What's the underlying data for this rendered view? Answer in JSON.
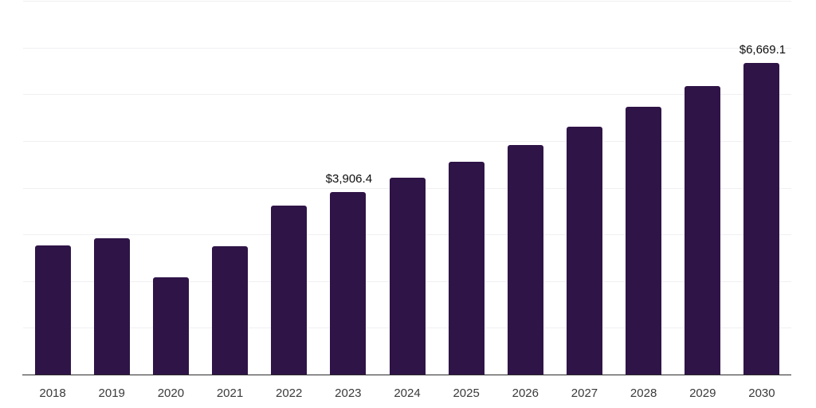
{
  "chart_data": {
    "type": "bar",
    "title": "",
    "xlabel": "",
    "ylabel": "",
    "categories": [
      "2018",
      "2019",
      "2020",
      "2021",
      "2022",
      "2023",
      "2024",
      "2025",
      "2026",
      "2027",
      "2028",
      "2029",
      "2030"
    ],
    "values": [
      2755,
      2915,
      2075,
      2750,
      3620,
      3906.4,
      4216.6,
      4551.5,
      4912.9,
      5303.0,
      5724.1,
      6178.7,
      6669.1
    ],
    "data_labels": [
      null,
      null,
      null,
      null,
      null,
      "$3,906.4",
      null,
      null,
      null,
      null,
      null,
      null,
      "$6,669.1"
    ],
    "ylim": [
      0,
      8000
    ],
    "grid_step": 1000,
    "grid": true,
    "legend": false,
    "bar_color": "#2f1447",
    "axis_color": "#2b2b2b",
    "grid_color": "#f0f0f3",
    "data_label_color": "#0d0d0d",
    "tick_label_color": "#3a3a3a"
  }
}
